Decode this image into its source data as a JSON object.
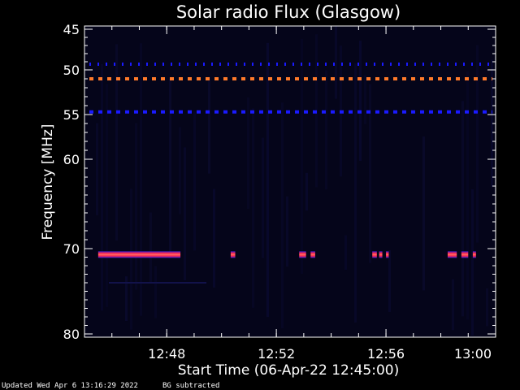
{
  "chart_data": {
    "type": "heatmap",
    "title": "Solar radio Flux (Glasgow)",
    "xlabel": "Start Time (06-Apr-22 12:45:00)",
    "ylabel": "Frequency [MHz]",
    "x_unit": "time",
    "x_range": [
      "12:45",
      "13:00"
    ],
    "y_range": [
      45,
      80
    ],
    "y_axis_reversed": true,
    "y_ticks": [
      45,
      50,
      55,
      60,
      70,
      80
    ],
    "x_ticks": [
      "12:48",
      "12:52",
      "12:56",
      "13:00"
    ],
    "background_color": "#05051a",
    "bands": [
      {
        "freq": 49.3,
        "style": "dotted",
        "color": "#1a1aff",
        "start": "12:45",
        "end": "13:00"
      },
      {
        "freq": 51.0,
        "style": "dashed",
        "color": "#ff7a2a",
        "start": "12:45",
        "end": "13:00"
      },
      {
        "freq": 54.7,
        "style": "dashed",
        "color": "#1a1aff",
        "start": "12:45",
        "end": "13:00"
      }
    ],
    "bursts": [
      {
        "freq": 70.7,
        "start": "12:45:30",
        "end": "12:48:30"
      },
      {
        "freq": 70.7,
        "start": "12:50:20",
        "end": "12:50:30"
      },
      {
        "freq": 70.7,
        "start": "12:52:50",
        "end": "12:53:05"
      },
      {
        "freq": 70.7,
        "start": "12:53:15",
        "end": "12:53:25"
      },
      {
        "freq": 70.7,
        "start": "12:55:30",
        "end": "12:55:40"
      },
      {
        "freq": 70.7,
        "start": "12:55:45",
        "end": "12:55:52"
      },
      {
        "freq": 70.7,
        "start": "12:56:00",
        "end": "12:56:06"
      },
      {
        "freq": 70.7,
        "start": "12:58:15",
        "end": "12:58:35"
      },
      {
        "freq": 70.7,
        "start": "12:58:45",
        "end": "12:59:00"
      },
      {
        "freq": 70.7,
        "start": "12:59:10",
        "end": "12:59:17"
      }
    ]
  },
  "footer": {
    "updated": "Updated Wed Apr  6 13:16:29 2022",
    "note": "BG subtracted"
  }
}
